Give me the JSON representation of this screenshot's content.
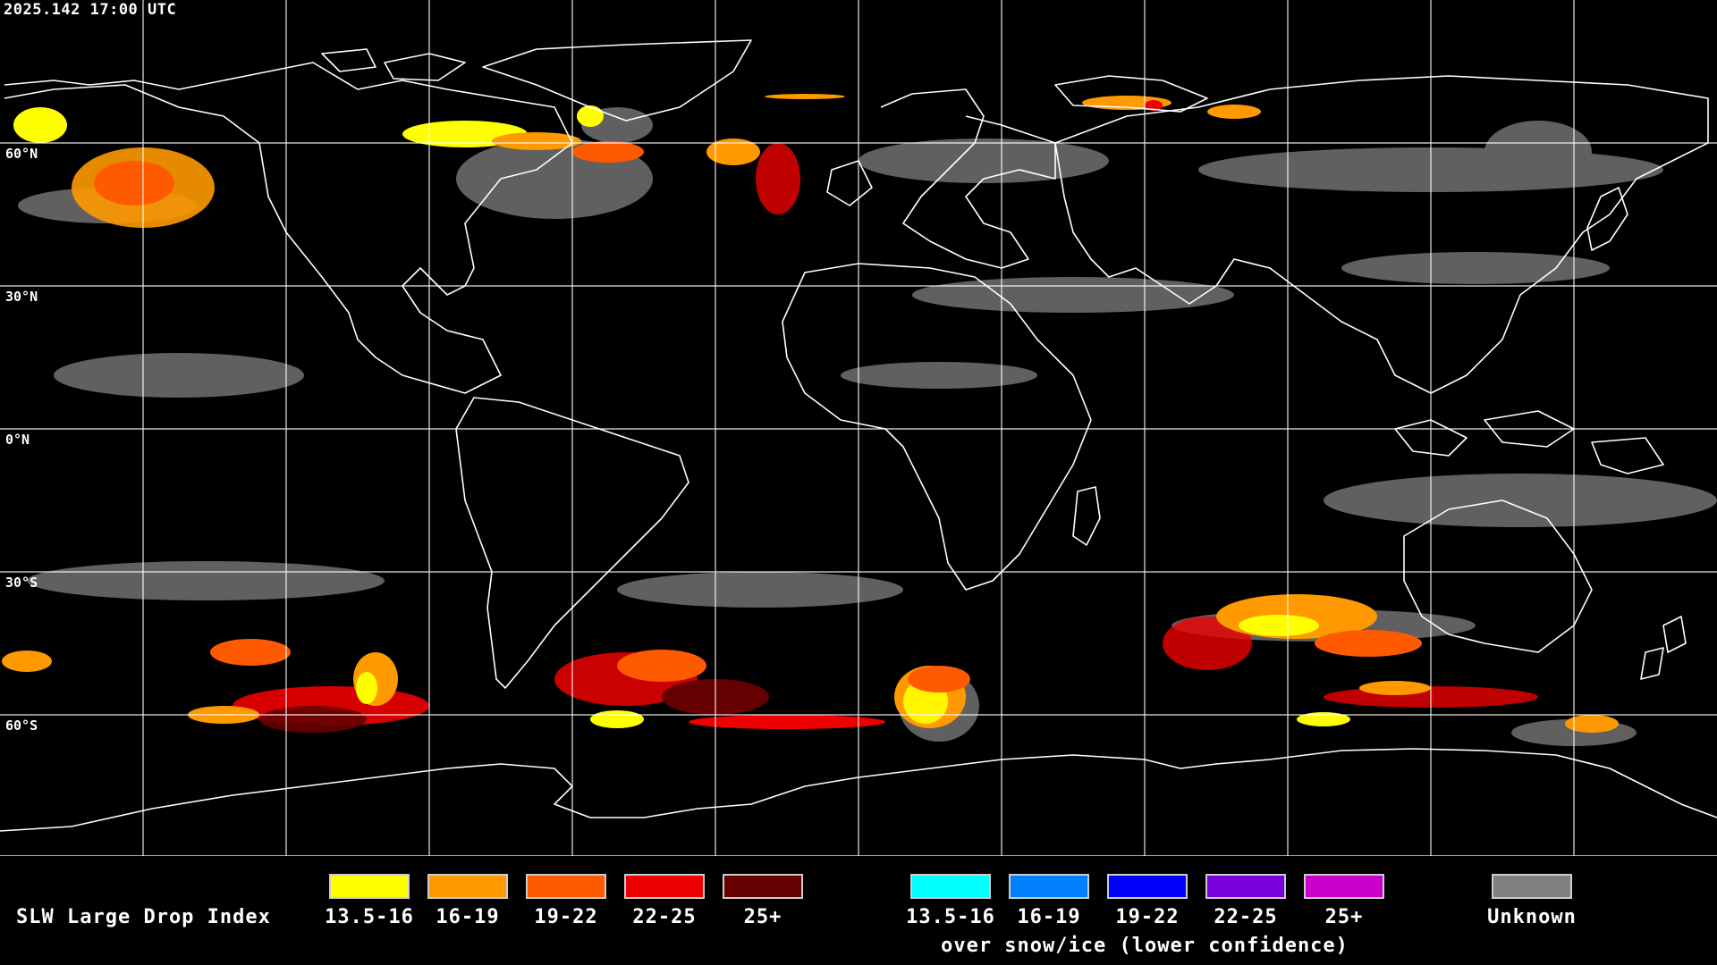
{
  "timestamp": "2025.142 17:00 UTC",
  "lat_labels": [
    "60°N",
    "30°N",
    "0°N",
    "30°S",
    "60°S"
  ],
  "legend": {
    "title": "SLW Large Drop Index",
    "main": [
      {
        "label": "13.5-16",
        "color": "#ffff00"
      },
      {
        "label": "16-19",
        "color": "#ff9900"
      },
      {
        "label": "19-22",
        "color": "#ff5a00"
      },
      {
        "label": "22-25",
        "color": "#ee0000"
      },
      {
        "label": "25+",
        "color": "#660000"
      }
    ],
    "snow_ice": [
      {
        "label": "13.5-16",
        "color": "#00ffff"
      },
      {
        "label": "16-19",
        "color": "#0080ff"
      },
      {
        "label": "19-22",
        "color": "#0000ff"
      },
      {
        "label": "22-25",
        "color": "#7700dd"
      },
      {
        "label": "25+",
        "color": "#cc00cc"
      }
    ],
    "snow_ice_caption": "over snow/ice (lower confidence)",
    "unknown": {
      "label": "Unknown",
      "color": "#808080"
    }
  }
}
